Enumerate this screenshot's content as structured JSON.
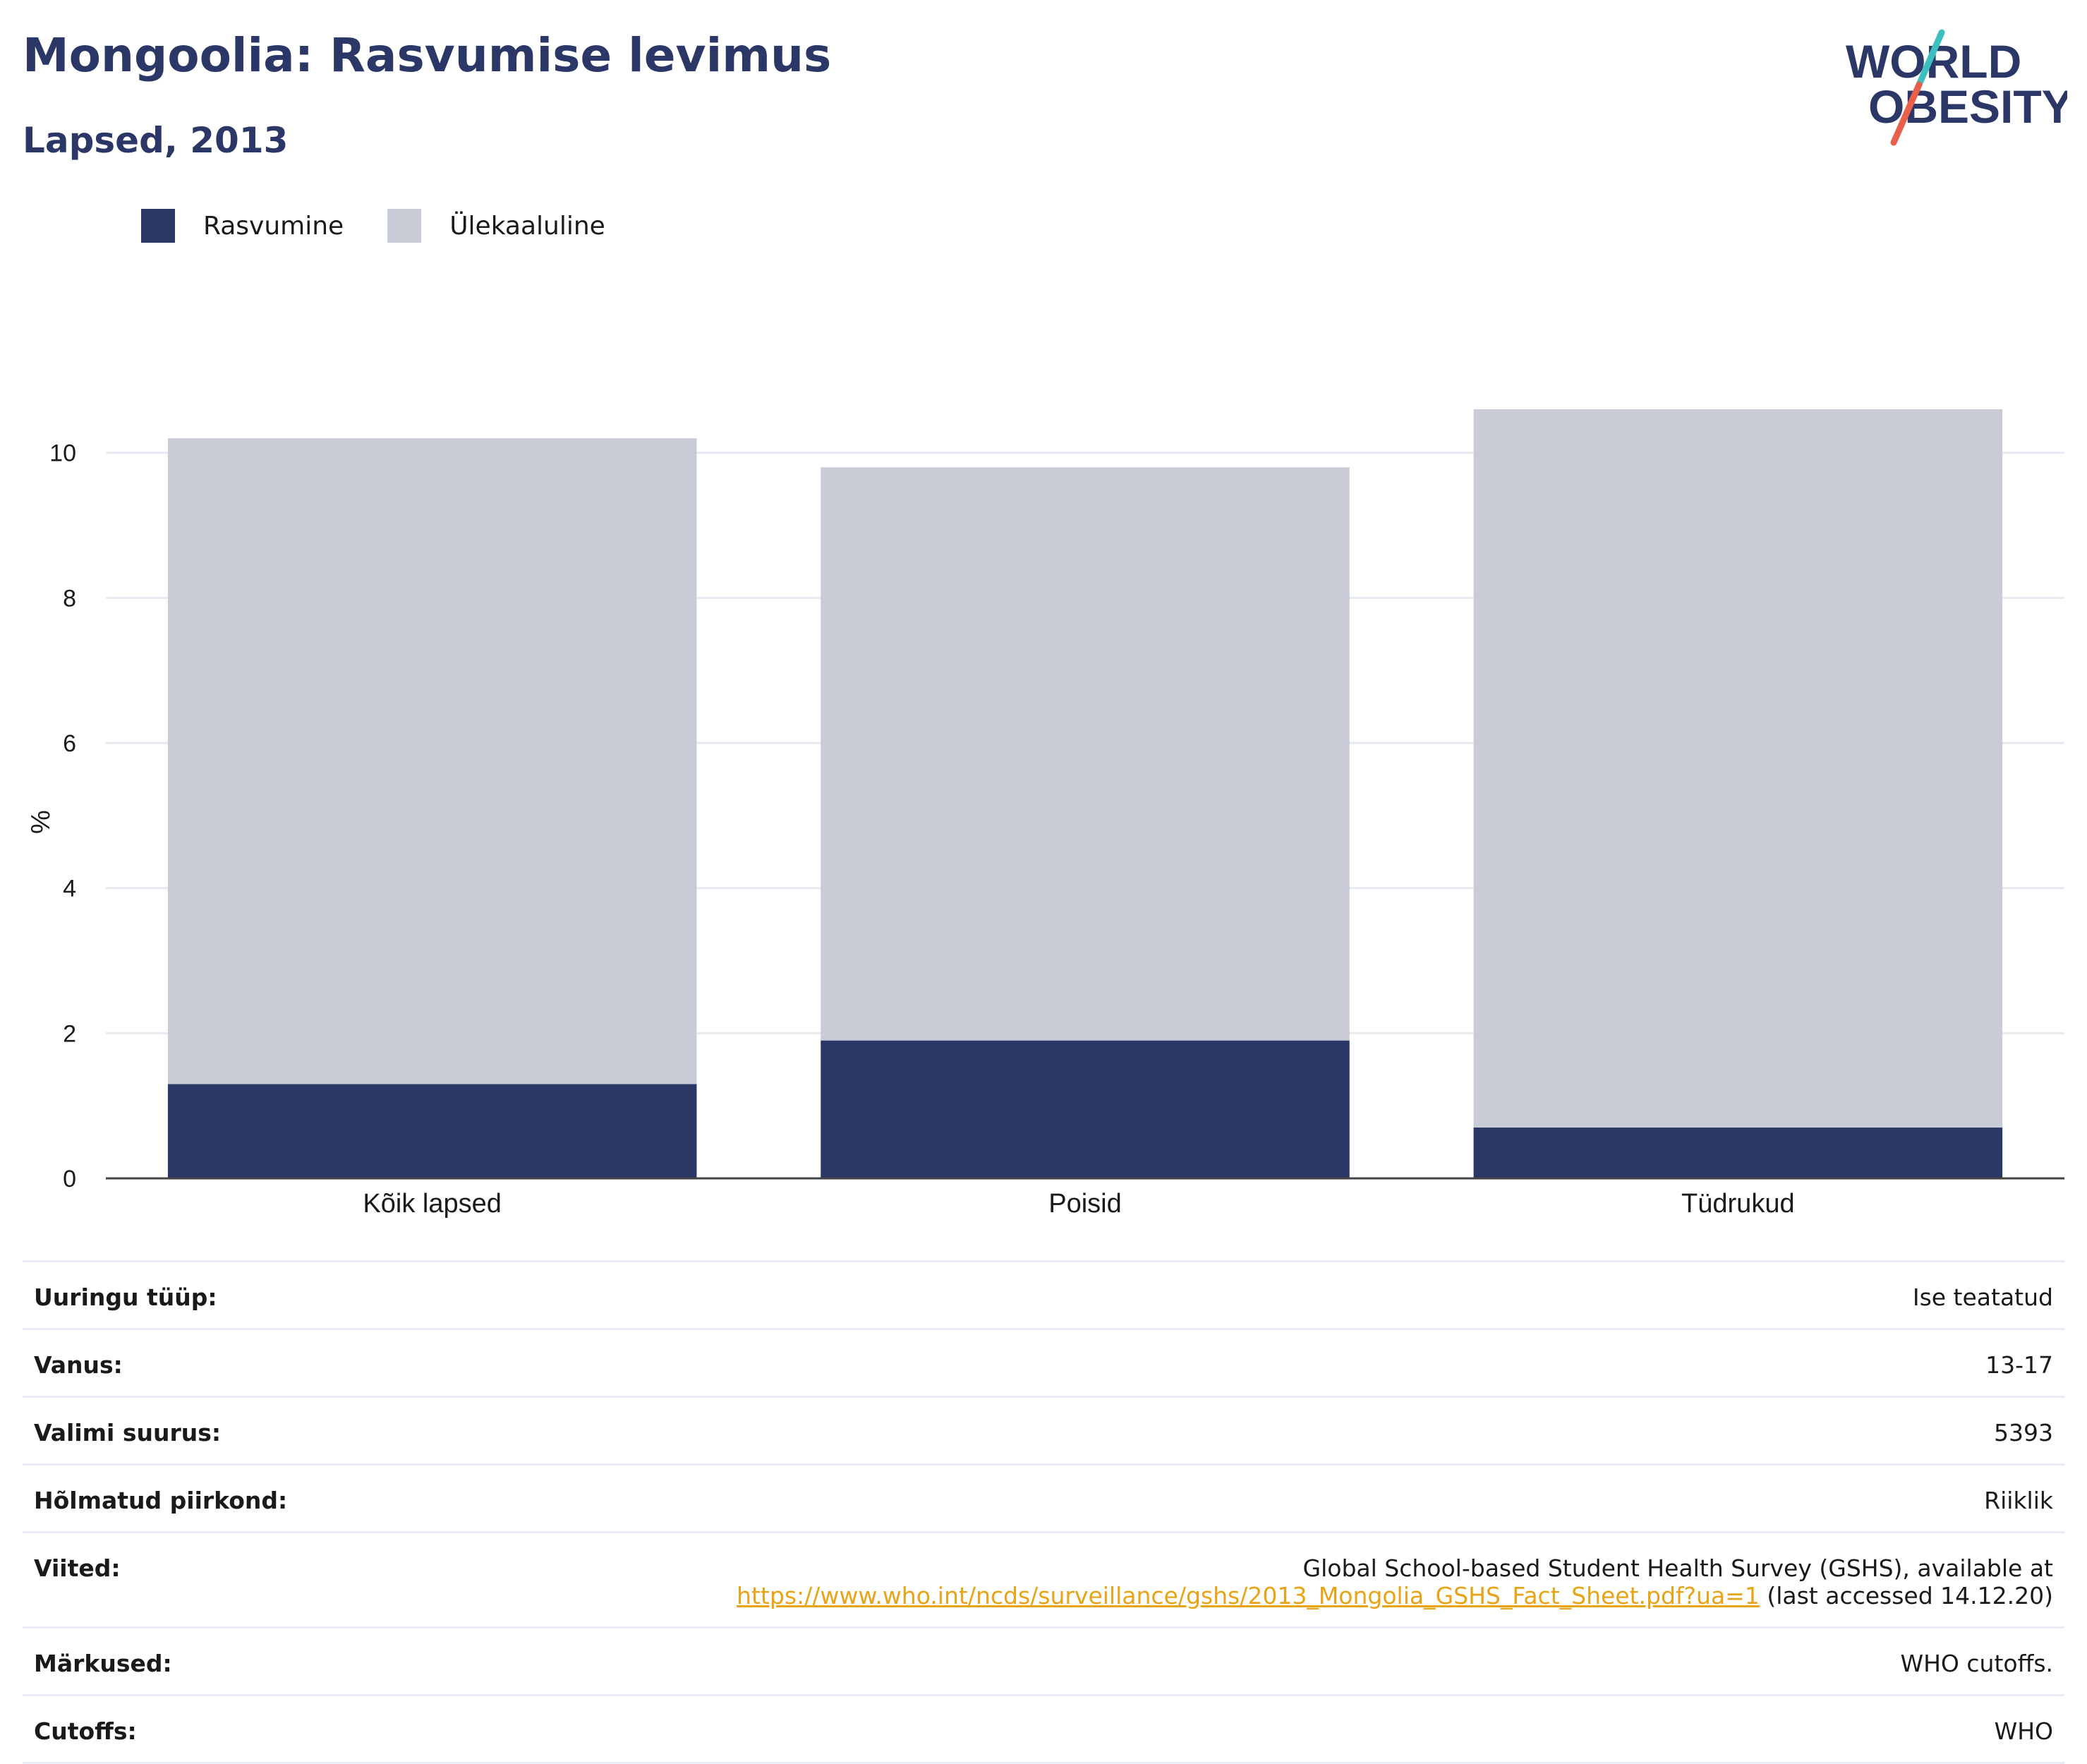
{
  "header": {
    "title": "Mongoolia: Rasvumise levimus",
    "subtitle": "Lapsed, 2013"
  },
  "logo": {
    "line1": "WORLD",
    "line2": "OBESITY"
  },
  "colors": {
    "obesity": "#2b3766",
    "overweight": "#c9cbd7",
    "title": "#2b3766",
    "link": "#e8a317",
    "logo_teal": "#3dbfbf",
    "logo_coral": "#e8604c"
  },
  "legend": [
    {
      "label": "Rasvumine",
      "color": "#2b3766"
    },
    {
      "label": "Ülekaaluline",
      "color": "#c9cbd7"
    }
  ],
  "chart_data": {
    "type": "bar",
    "stacked": true,
    "categories": [
      "Kõik lapsed",
      "Poisid",
      "Tüdrukud"
    ],
    "series": [
      {
        "name": "Rasvumine",
        "values": [
          1.3,
          1.9,
          0.7
        ]
      },
      {
        "name": "Ülekaaluline",
        "values": [
          8.9,
          7.9,
          9.9
        ]
      }
    ],
    "ylabel": "%",
    "ylim": [
      0,
      10.6
    ],
    "yticks": [
      0,
      2,
      4,
      6,
      8,
      10
    ],
    "grid": true
  },
  "meta": [
    {
      "label": "Uuringu tüüp:",
      "value": "Ise teatatud"
    },
    {
      "label": "Vanus:",
      "value": "13-17"
    },
    {
      "label": "Valimi suurus:",
      "value": "5393"
    },
    {
      "label": "Hõlmatud piirkond:",
      "value": "Riiklik"
    },
    {
      "label": "Viited:",
      "value_line1": "Global School-based Student Health Survey (GSHS), available at",
      "link": "https://www.who.int/ncds/surveillance/gshs/2013_Mongolia_GSHS_Fact_Sheet.pdf?ua=1",
      "value_suffix": " (last accessed 14.12.20)"
    },
    {
      "label": "Märkused:",
      "value": "WHO cutoffs."
    },
    {
      "label": "Cutoffs:",
      "value": "WHO"
    }
  ]
}
